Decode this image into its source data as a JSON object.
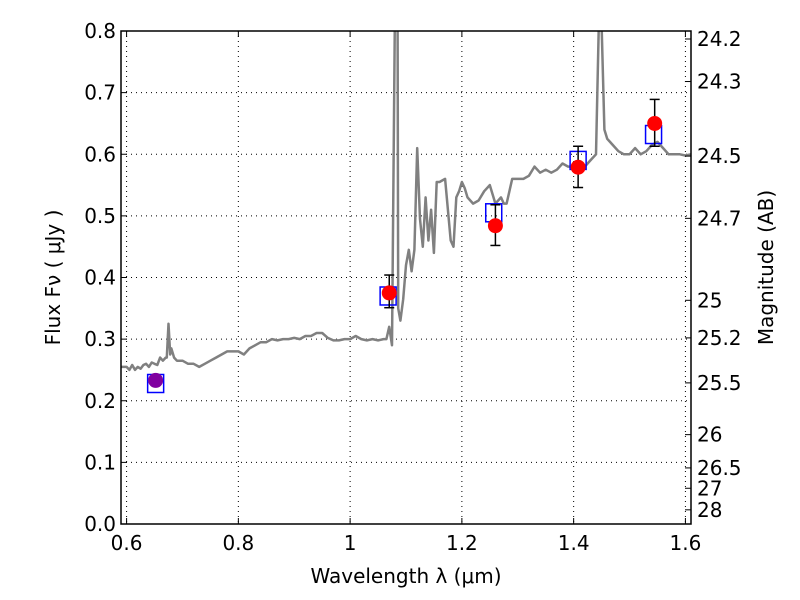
{
  "chart_data": {
    "type": "line",
    "xlabel": "Wavelength  λ (μm)",
    "ylabel": "Flux  Fν  ( μJy )",
    "ylabel_right": "Magnitude (AB)",
    "xlim": [
      0.59,
      1.61
    ],
    "ylim": [
      0.0,
      0.8
    ],
    "grid": true,
    "x_ticks": [
      {
        "value": 0.6,
        "label": "0.6"
      },
      {
        "value": 0.8,
        "label": "0.8"
      },
      {
        "value": 1.0,
        "label": "1"
      },
      {
        "value": 1.2,
        "label": "1.2"
      },
      {
        "value": 1.4,
        "label": "1.4"
      },
      {
        "value": 1.6,
        "label": "1.6"
      }
    ],
    "y_ticks": [
      {
        "value": 0.0,
        "label": "0.0"
      },
      {
        "value": 0.1,
        "label": "0.1"
      },
      {
        "value": 0.2,
        "label": "0.2"
      },
      {
        "value": 0.3,
        "label": "0.3"
      },
      {
        "value": 0.4,
        "label": "0.4"
      },
      {
        "value": 0.5,
        "label": "0.5"
      },
      {
        "value": 0.6,
        "label": "0.6"
      },
      {
        "value": 0.7,
        "label": "0.7"
      },
      {
        "value": 0.8,
        "label": "0.8"
      }
    ],
    "right_ticks": [
      {
        "flux": 0.787,
        "label": "24.2"
      },
      {
        "flux": 0.718,
        "label": "24.3"
      },
      {
        "flux": 0.597,
        "label": "24.5"
      },
      {
        "flux": 0.496,
        "label": "24.7"
      },
      {
        "flux": 0.363,
        "label": "25"
      },
      {
        "flux": 0.302,
        "label": "25.2"
      },
      {
        "flux": 0.229,
        "label": "25.5"
      },
      {
        "flux": 0.145,
        "label": "26"
      },
      {
        "flux": 0.091,
        "label": "26.5"
      },
      {
        "flux": 0.058,
        "label": "27"
      },
      {
        "flux": 0.023,
        "label": "28"
      }
    ],
    "colors": {
      "model": "#808080",
      "observed": "#ff0000",
      "synthetic": "#0000ff",
      "errorbar": "#000000",
      "blend": "#8000a0"
    },
    "series": [
      {
        "kind": "model_spectrum",
        "x": [
          0.59,
          0.6,
          0.605,
          0.61,
          0.615,
          0.62,
          0.625,
          0.63,
          0.635,
          0.64,
          0.645,
          0.65,
          0.655,
          0.66,
          0.665,
          0.67,
          0.672,
          0.675,
          0.678,
          0.68,
          0.685,
          0.69,
          0.7,
          0.71,
          0.72,
          0.73,
          0.74,
          0.75,
          0.76,
          0.77,
          0.78,
          0.79,
          0.8,
          0.81,
          0.82,
          0.83,
          0.84,
          0.85,
          0.86,
          0.87,
          0.88,
          0.89,
          0.9,
          0.91,
          0.92,
          0.93,
          0.94,
          0.95,
          0.96,
          0.97,
          0.98,
          0.99,
          1.0,
          1.01,
          1.02,
          1.03,
          1.04,
          1.05,
          1.06,
          1.065,
          1.07,
          1.075,
          1.08,
          1.085,
          1.086,
          1.09,
          1.095,
          1.1,
          1.105,
          1.11,
          1.115,
          1.12,
          1.125,
          1.13,
          1.135,
          1.14,
          1.145,
          1.15,
          1.155,
          1.16,
          1.17,
          1.18,
          1.185,
          1.19,
          1.195,
          1.2,
          1.205,
          1.21,
          1.22,
          1.23,
          1.24,
          1.25,
          1.26,
          1.27,
          1.275,
          1.28,
          1.29,
          1.3,
          1.31,
          1.32,
          1.33,
          1.34,
          1.35,
          1.36,
          1.37,
          1.38,
          1.39,
          1.4,
          1.41,
          1.42,
          1.43,
          1.44,
          1.445,
          1.45,
          1.455,
          1.46,
          1.465,
          1.47,
          1.48,
          1.49,
          1.5,
          1.51,
          1.52,
          1.53,
          1.54,
          1.55,
          1.56,
          1.57,
          1.58,
          1.59,
          1.6,
          1.61
        ],
        "y": [
          0.255,
          0.255,
          0.25,
          0.258,
          0.25,
          0.255,
          0.252,
          0.258,
          0.26,
          0.255,
          0.262,
          0.26,
          0.258,
          0.27,
          0.265,
          0.27,
          0.27,
          0.325,
          0.275,
          0.285,
          0.27,
          0.265,
          0.265,
          0.26,
          0.26,
          0.255,
          0.26,
          0.265,
          0.27,
          0.275,
          0.28,
          0.28,
          0.28,
          0.275,
          0.285,
          0.29,
          0.295,
          0.295,
          0.3,
          0.298,
          0.3,
          0.3,
          0.302,
          0.3,
          0.305,
          0.305,
          0.31,
          0.31,
          0.302,
          0.298,
          0.298,
          0.3,
          0.3,
          0.305,
          0.3,
          0.298,
          0.3,
          0.298,
          0.3,
          0.3,
          0.32,
          0.29,
          0.81,
          0.81,
          0.35,
          0.33,
          0.365,
          0.42,
          0.445,
          0.41,
          0.445,
          0.61,
          0.495,
          0.45,
          0.53,
          0.46,
          0.51,
          0.44,
          0.555,
          0.555,
          0.56,
          0.46,
          0.45,
          0.53,
          0.54,
          0.555,
          0.545,
          0.53,
          0.52,
          0.525,
          0.54,
          0.55,
          0.52,
          0.53,
          0.52,
          0.52,
          0.56,
          0.56,
          0.56,
          0.565,
          0.58,
          0.57,
          0.575,
          0.57,
          0.575,
          0.585,
          0.58,
          0.58,
          0.585,
          0.58,
          0.59,
          0.6,
          0.81,
          0.81,
          0.64,
          0.625,
          0.62,
          0.615,
          0.605,
          0.6,
          0.6,
          0.61,
          0.6,
          0.605,
          0.615,
          0.62,
          0.61,
          0.6,
          0.6,
          0.6,
          0.598,
          0.6
        ]
      },
      {
        "kind": "observed_photometry",
        "x": [
          0.652,
          1.07,
          1.26,
          1.408,
          1.545
        ],
        "y": [
          0.233,
          0.375,
          0.484,
          0.579,
          0.65
        ],
        "err_low": [
          0.0,
          0.024,
          0.032,
          0.033,
          0.037
        ],
        "err_high": [
          0.0,
          0.029,
          0.034,
          0.034,
          0.039
        ]
      },
      {
        "kind": "synthetic_photometry",
        "x": [
          0.652,
          1.068,
          1.257,
          1.408,
          1.543
        ],
        "y": [
          0.228,
          0.37,
          0.505,
          0.59,
          0.632
        ]
      }
    ]
  }
}
